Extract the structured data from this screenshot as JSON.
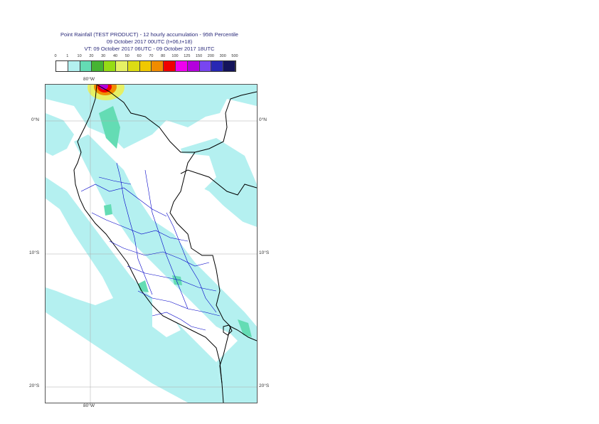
{
  "header": {
    "line1": "Point Rainfall (TEST PRODUCT) - 12 hourly accumulation - 95th Percentile",
    "line2": "09 October 2017 00UTC (t+06,t+18)",
    "line3": "VT: 09 October 2017 06UTC - 09 October 2017 18UTC"
  },
  "legend": {
    "thresholds": [
      "0",
      "1",
      "10",
      "20",
      "30",
      "40",
      "50",
      "60",
      "70",
      "80",
      "100",
      "125",
      "150",
      "200",
      "300",
      "500"
    ],
    "colors": [
      "#ffffff",
      "#b4f0f0",
      "#64dcb4",
      "#46b432",
      "#96dc14",
      "#e6f064",
      "#dcdc14",
      "#f0c800",
      "#f08c00",
      "#f00000",
      "#f000f0",
      "#b400dc",
      "#7846f0",
      "#2828b4",
      "#14145a"
    ]
  },
  "axes": {
    "lon_top": "80°W",
    "lon_bottom": "80°W",
    "lat_left": [
      "0°N",
      "10°S",
      "20°S"
    ],
    "lat_right": [
      "0°N",
      "10°S",
      "20°S"
    ]
  },
  "map_style": {
    "rain_fill": "#b4f0f0",
    "moderate_fill": "#64dcb4",
    "coast_color": "#000000",
    "region_color": "#0000c8",
    "grid_color": "#aaaaaa"
  }
}
